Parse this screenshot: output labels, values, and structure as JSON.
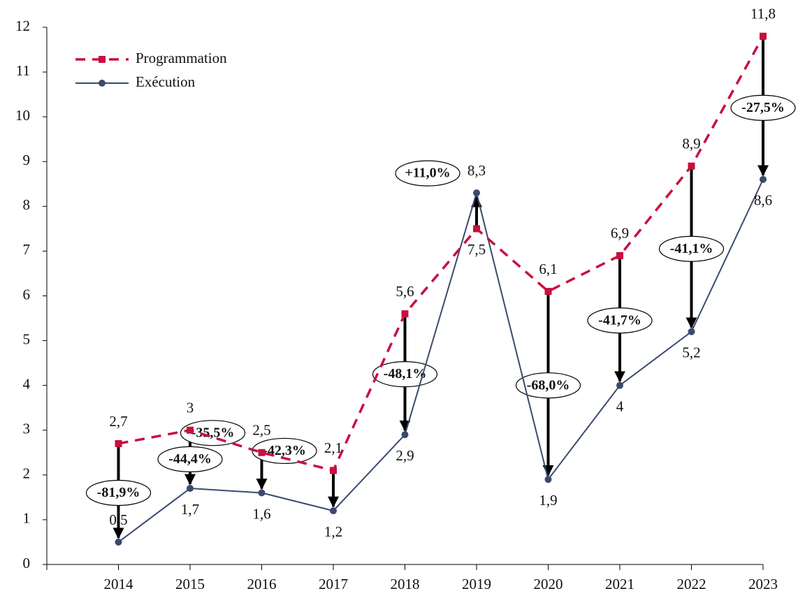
{
  "chart_data": {
    "type": "line",
    "categories": [
      "2014",
      "2015",
      "2016",
      "2017",
      "2018",
      "2019",
      "2020",
      "2021",
      "2022",
      "2023"
    ],
    "series": [
      {
        "name": "Programmation",
        "color": "#c8103e",
        "dashed": true,
        "marker": "square",
        "values": [
          2.7,
          3,
          2.5,
          2.1,
          5.6,
          7.5,
          6.1,
          6.9,
          8.9,
          11.8
        ],
        "value_labels": [
          "2,7",
          "3",
          "2,5",
          "2,1",
          "5,6",
          "7,5",
          "6,1",
          "6,9",
          "8,9",
          "11,8"
        ]
      },
      {
        "name": "Exécution",
        "color": "#3a4a6e",
        "dashed": false,
        "marker": "circle",
        "values": [
          0.5,
          1.7,
          1.6,
          1.2,
          2.9,
          8.3,
          1.9,
          4,
          5.2,
          8.6
        ],
        "value_labels": [
          "0,5",
          "1,7",
          "1,6",
          "1,2",
          "2,9",
          "8,3",
          "1,9",
          "4",
          "5,2",
          "8,6"
        ]
      }
    ],
    "annotations": [
      "-81,9%",
      "-44,4%",
      "-35,5%",
      "-42,3%",
      "-48,1%",
      "+11,0%",
      "-68,0%",
      "-41,7%",
      "-41,1%",
      "-27,5%"
    ],
    "ylim": [
      0,
      12
    ],
    "yticks": [
      0,
      1,
      2,
      3,
      4,
      5,
      6,
      7,
      8,
      9,
      10,
      11,
      12
    ],
    "grid": false,
    "legend": "top-left"
  }
}
